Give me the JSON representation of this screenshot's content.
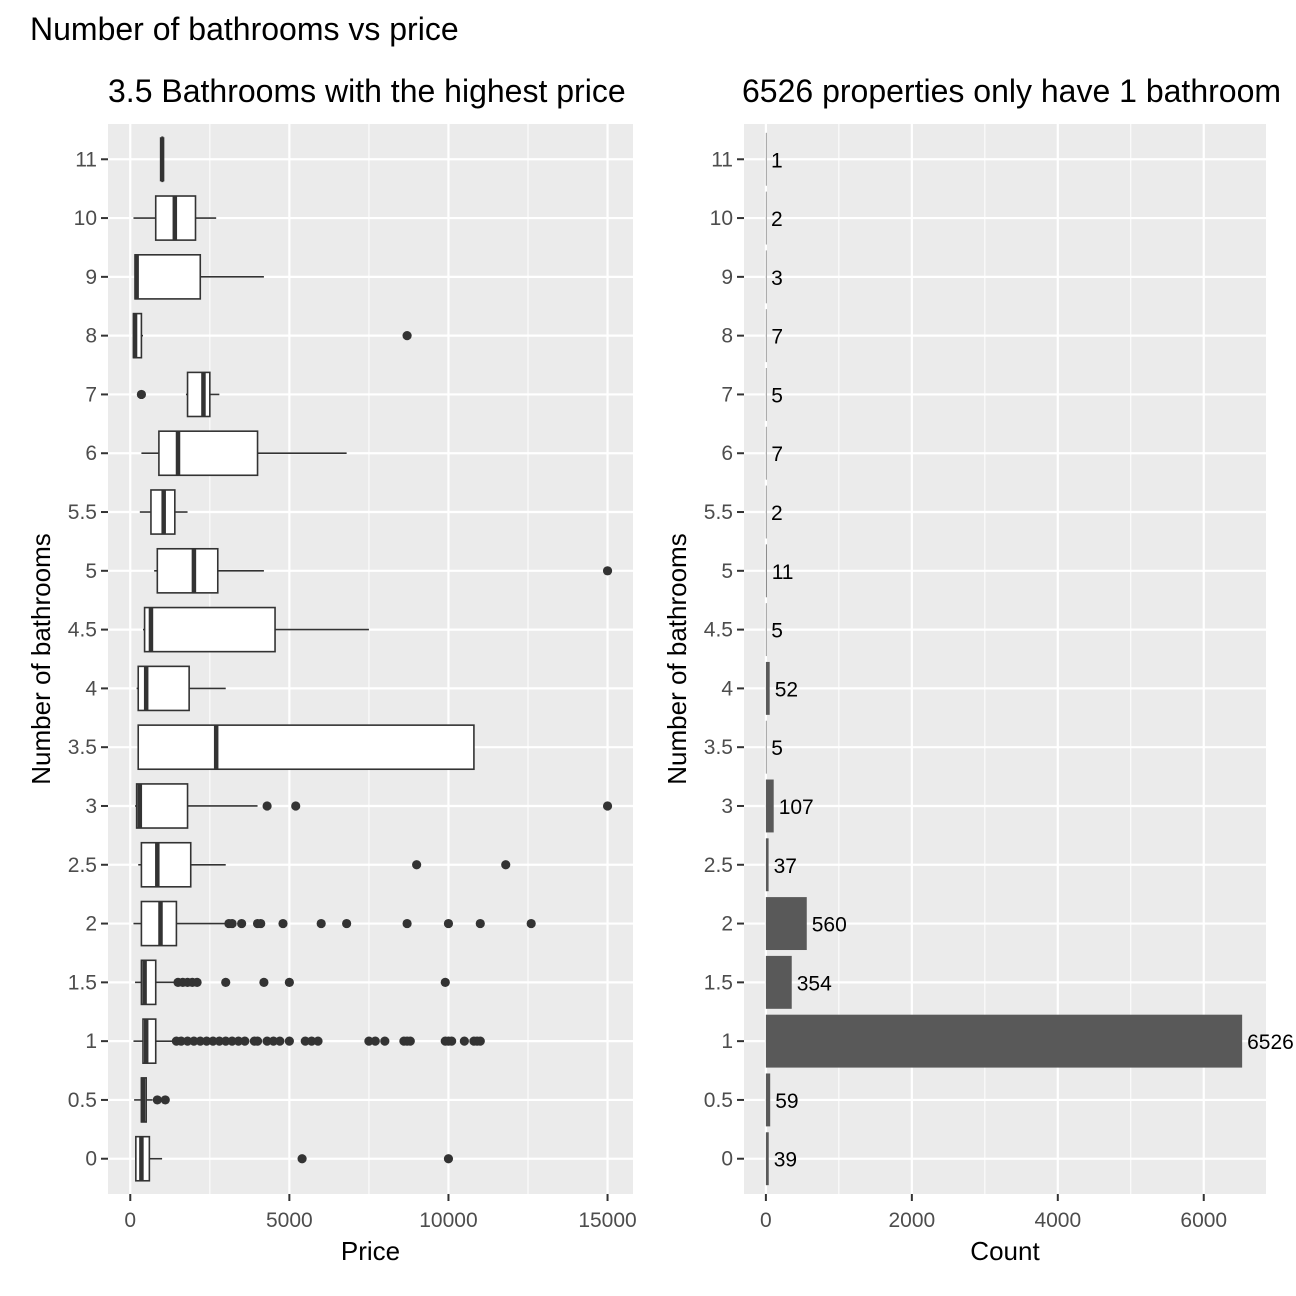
{
  "title": "Number of bathrooms vs price",
  "chart_data": [
    {
      "type": "boxplot",
      "title": "3.5 Bathrooms with the highest price",
      "xlabel": "Price",
      "ylabel": "Number of bathrooms",
      "xlim": [
        -700,
        15800
      ],
      "xticks": [
        0,
        5000,
        10000,
        15000
      ],
      "categories": [
        "0",
        "0.5",
        "1",
        "1.5",
        "2",
        "2.5",
        "3",
        "3.5",
        "4",
        "4.5",
        "5",
        "5.5",
        "6",
        "7",
        "8",
        "9",
        "10",
        "11"
      ],
      "boxes": [
        {
          "category": "0",
          "min": 150,
          "q1": 175,
          "median": 350,
          "q3": 600,
          "max": 1000,
          "outliers": [
            5400,
            10000
          ]
        },
        {
          "category": "0.5",
          "min": 120,
          "q1": 350,
          "median": 400,
          "q3": 500,
          "max": 700,
          "outliers": [
            850,
            1100
          ]
        },
        {
          "category": "1",
          "min": 100,
          "q1": 400,
          "median": 500,
          "q3": 800,
          "max": 1400,
          "outliers": [
            1450,
            1600,
            1800,
            2000,
            2200,
            2400,
            2600,
            2800,
            3000,
            3200,
            3400,
            3600,
            3900,
            4000,
            4300,
            4500,
            4700,
            5000,
            5500,
            5700,
            5900,
            7500,
            7700,
            8000,
            8600,
            8700,
            8800,
            9900,
            10000,
            10100,
            10500,
            10800,
            10900,
            11000
          ]
        },
        {
          "category": "1.5",
          "min": 150,
          "q1": 350,
          "median": 450,
          "q3": 800,
          "max": 1450,
          "outliers": [
            1500,
            1650,
            1800,
            1950,
            2100,
            3000,
            4200,
            5000,
            9900
          ]
        },
        {
          "category": "2",
          "min": 100,
          "q1": 350,
          "median": 950,
          "q3": 1450,
          "max": 3000,
          "outliers": [
            3100,
            3200,
            3500,
            4000,
            4100,
            4800,
            6000,
            6800,
            8700,
            10000,
            11000,
            12600
          ]
        },
        {
          "category": "2.5",
          "min": 250,
          "q1": 350,
          "median": 850,
          "q3": 1900,
          "max": 3000,
          "outliers": [
            9000,
            11800
          ]
        },
        {
          "category": "3",
          "min": 150,
          "q1": 200,
          "median": 300,
          "q3": 1800,
          "max": 4000,
          "outliers": [
            4300,
            5200,
            15000
          ]
        },
        {
          "category": "3.5",
          "min": 250,
          "q1": 250,
          "median": 2700,
          "q3": 10800,
          "max": 10800,
          "outliers": []
        },
        {
          "category": "4",
          "min": 200,
          "q1": 250,
          "median": 500,
          "q3": 1850,
          "max": 3000,
          "outliers": []
        },
        {
          "category": "4.5",
          "min": 400,
          "q1": 450,
          "median": 650,
          "q3": 4550,
          "max": 7500,
          "outliers": []
        },
        {
          "category": "5",
          "min": 750,
          "q1": 850,
          "median": 2000,
          "q3": 2750,
          "max": 4200,
          "outliers": [
            15000
          ]
        },
        {
          "category": "5.5",
          "min": 300,
          "q1": 650,
          "median": 1050,
          "q3": 1400,
          "max": 1800,
          "outliers": []
        },
        {
          "category": "6",
          "min": 350,
          "q1": 900,
          "median": 1500,
          "q3": 4000,
          "max": 6800,
          "outliers": []
        },
        {
          "category": "7",
          "min": 1750,
          "q1": 1800,
          "median": 2300,
          "q3": 2500,
          "max": 2800,
          "outliers": [
            350
          ]
        },
        {
          "category": "8",
          "min": 80,
          "q1": 100,
          "median": 150,
          "q3": 350,
          "max": 400,
          "outliers": [
            8700
          ]
        },
        {
          "category": "9",
          "min": 150,
          "q1": 150,
          "median": 200,
          "q3": 2200,
          "max": 4200,
          "outliers": []
        },
        {
          "category": "10",
          "min": 100,
          "q1": 800,
          "median": 1400,
          "q3": 2050,
          "max": 2700,
          "outliers": []
        },
        {
          "category": "11",
          "min": 1000,
          "q1": 1000,
          "median": 1000,
          "q3": 1000,
          "max": 1000,
          "outliers": []
        }
      ]
    },
    {
      "type": "bar",
      "orientation": "horizontal",
      "title": "6526 properties only have 1 bathroom",
      "xlabel": "Count",
      "ylabel": "Number of bathrooms",
      "xlim": [
        -300,
        6853
      ],
      "xticks": [
        0,
        2000,
        4000,
        6000
      ],
      "categories": [
        "0",
        "0.5",
        "1",
        "1.5",
        "2",
        "2.5",
        "3",
        "3.5",
        "4",
        "4.5",
        "5",
        "5.5",
        "6",
        "7",
        "8",
        "9",
        "10",
        "11"
      ],
      "values": [
        39,
        59,
        6526,
        354,
        560,
        37,
        107,
        5,
        52,
        5,
        11,
        2,
        7,
        5,
        7,
        3,
        2,
        1
      ],
      "data_labels": [
        "39",
        "59",
        "6526",
        "354",
        "560",
        "37",
        "107",
        "5",
        "52",
        "5",
        "11",
        "2",
        "7",
        "5",
        "7",
        "3",
        "2",
        "1"
      ]
    }
  ],
  "colors": {
    "panel_background": "#ebebeb",
    "grid": "#ffffff",
    "bar_fill": "#595959",
    "box_stroke": "#333333",
    "box_fill": "#ffffff",
    "tick_text": "#4d4d4d"
  }
}
